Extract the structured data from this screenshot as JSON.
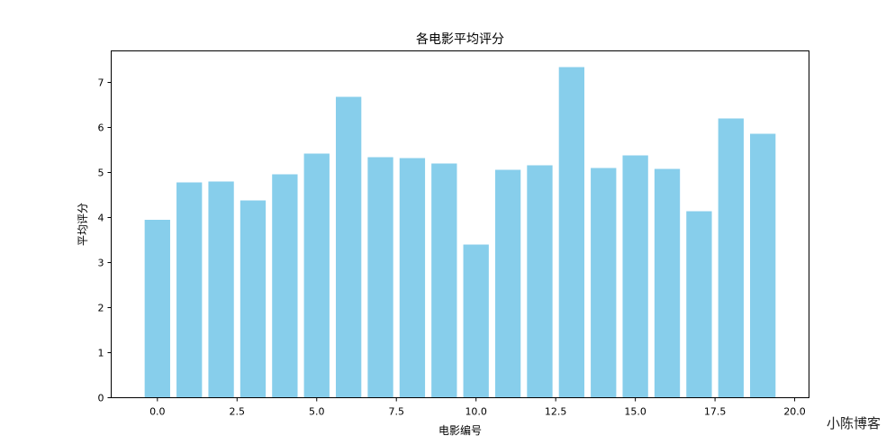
{
  "watermark": "小陈博客",
  "chart_data": {
    "type": "bar",
    "title": "各电影平均评分",
    "xlabel": "电影编号",
    "ylabel": "平均评分",
    "x": [
      0,
      1,
      2,
      3,
      4,
      5,
      6,
      7,
      8,
      9,
      10,
      11,
      12,
      13,
      14,
      15,
      16,
      17,
      18,
      19
    ],
    "values": [
      3.95,
      4.78,
      4.8,
      4.38,
      4.96,
      5.42,
      6.68,
      5.34,
      5.32,
      5.2,
      3.4,
      5.06,
      5.16,
      7.34,
      5.1,
      5.38,
      5.08,
      4.14,
      6.2,
      5.86
    ],
    "xlim": [
      -1.45,
      20.45
    ],
    "ylim": [
      0,
      7.7
    ],
    "xticks": [
      0.0,
      2.5,
      5.0,
      7.5,
      10.0,
      12.5,
      15.0,
      17.5,
      20.0
    ],
    "xtick_labels": [
      "0.0",
      "2.5",
      "5.0",
      "7.5",
      "10.0",
      "12.5",
      "15.0",
      "17.5",
      "20.0"
    ],
    "yticks": [
      0,
      1,
      2,
      3,
      4,
      5,
      6,
      7
    ],
    "ytick_labels": [
      "0",
      "1",
      "2",
      "3",
      "4",
      "5",
      "6",
      "7"
    ],
    "bar_color": "#87CEEB",
    "grid": false,
    "legend": "none"
  }
}
